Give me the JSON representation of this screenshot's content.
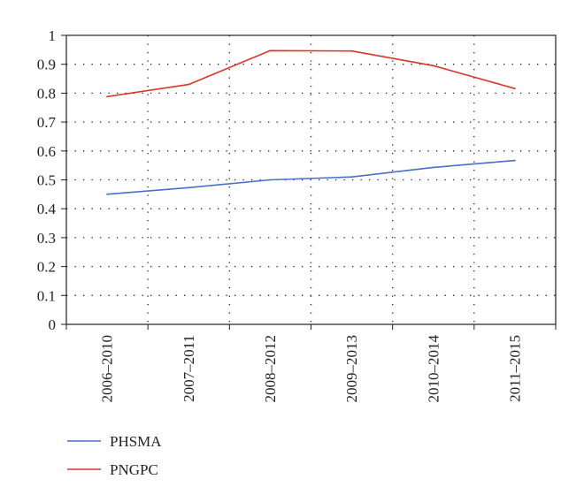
{
  "chart_data": {
    "type": "line",
    "categories": [
      "2006–2010",
      "2007–2011",
      "2008–2012",
      "2009–2013",
      "2010–2014",
      "2011–2015"
    ],
    "series": [
      {
        "name": "PHSMA",
        "values": [
          0.45,
          0.473,
          0.5,
          0.51,
          0.543,
          0.567
        ],
        "color": "#4a6fc7"
      },
      {
        "name": "PNGPC",
        "values": [
          0.788,
          0.83,
          0.947,
          0.946,
          0.895,
          0.816
        ],
        "color": "#d9352b"
      }
    ],
    "yticks": [
      "0",
      "0.1",
      "0.2",
      "0.3",
      "0.4",
      "0.5",
      "0.6",
      "0.7",
      "0.8",
      "0.9",
      "1"
    ],
    "ylim": [
      0,
      1
    ],
    "grid": true,
    "legend_position": "bottom-left",
    "title": "",
    "xlabel": "",
    "ylabel": ""
  }
}
